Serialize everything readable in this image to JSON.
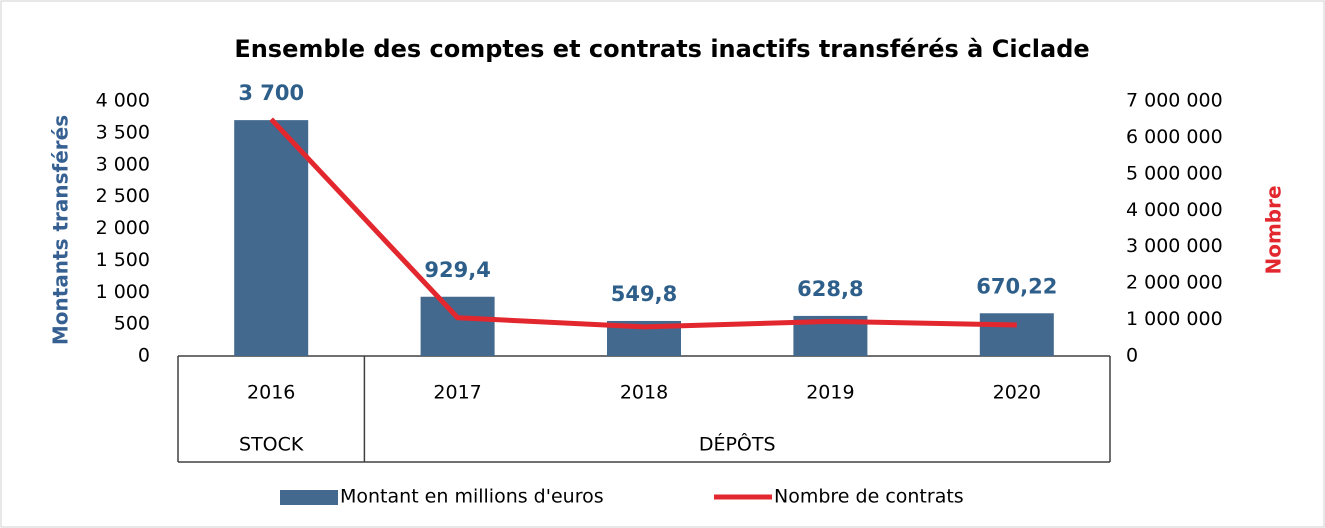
{
  "chart_data": {
    "type": "bar",
    "title": "Ensemble des comptes et contrats inactifs transférés à Ciclade",
    "ylabel": "Montants transférés",
    "y2label": "Nombre",
    "categories": [
      "2016",
      "2017",
      "2018",
      "2019",
      "2020"
    ],
    "groups": [
      {
        "label": "STOCK",
        "count": 1
      },
      {
        "label": "DÉPÔTS",
        "count": 4
      }
    ],
    "series": [
      {
        "name": "Montant en millions d'euros",
        "type": "bar",
        "color": "#44698f",
        "values": [
          3700,
          929.4,
          549.8,
          628.8,
          670.22
        ],
        "value_labels": [
          "3 700",
          "929,4",
          "549,8",
          "628,8",
          "670,22"
        ]
      },
      {
        "name": "Nombre de contrats",
        "type": "line",
        "axis": "y2",
        "color": "#e3272e",
        "values": [
          6500000,
          1050000,
          800000,
          950000,
          850000
        ]
      }
    ],
    "ylim": [
      0,
      4000
    ],
    "yticks": [
      0,
      500,
      {
        "value": 1000,
        "label": "1 000"
      },
      {
        "value": 1500,
        "label": "1 500"
      },
      {
        "value": 2000,
        "label": "2 000"
      },
      {
        "value": 2500,
        "label": "2 500"
      },
      {
        "value": 3000,
        "label": "3 000"
      },
      {
        "value": 3500,
        "label": "3 500"
      },
      {
        "value": 4000,
        "label": "4 000"
      }
    ],
    "y2lim": [
      0,
      7000000
    ],
    "y2ticks": [
      0,
      {
        "value": 1000000,
        "label": "1 000 000"
      },
      {
        "value": 2000000,
        "label": "2 000 000"
      },
      {
        "value": 3000000,
        "label": "3 000 000"
      },
      {
        "value": 4000000,
        "label": "4 000 000"
      },
      {
        "value": 5000000,
        "label": "5 000 000"
      },
      {
        "value": 6000000,
        "label": "6 000 000"
      },
      {
        "value": 7000000,
        "label": "7 000 000"
      }
    ],
    "grid": false
  }
}
